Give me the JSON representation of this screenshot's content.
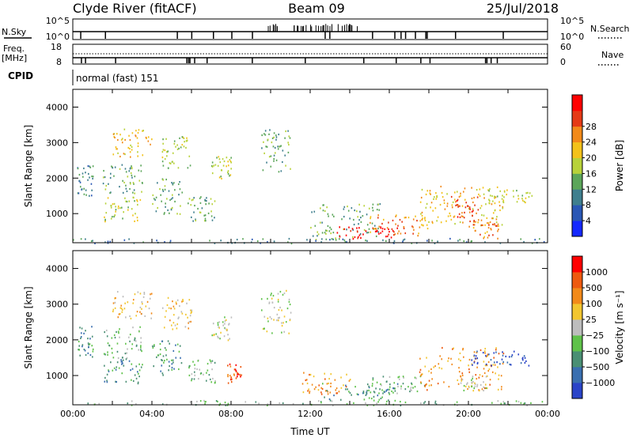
{
  "header": {
    "title": "Clyde River (fitACF)",
    "beam": "Beam 09",
    "date": "25/Jul/2018"
  },
  "sky_panel": {
    "left_label": "N.Sky",
    "right_label": "N.Search",
    "left_ticks": [
      "10^5",
      "10^0"
    ],
    "right_ticks": [
      "10^5",
      "10^0"
    ]
  },
  "freq_panel": {
    "left_label_top": "Freq.",
    "left_label_bottom": "[MHz]",
    "right_label": "Nave",
    "left_ticks": [
      "18",
      "8"
    ],
    "right_ticks": [
      "60",
      "0"
    ]
  },
  "cpid": {
    "label": "CPID",
    "value": "normal (fast) 151"
  },
  "chart_data": [
    {
      "type": "heatmap",
      "quantity": "Power",
      "ylabel": "Slant Range [km]",
      "ylim": [
        180,
        4500
      ],
      "yticks": [
        1000,
        2000,
        3000,
        4000
      ],
      "colorbar": {
        "label": "Power [dB]",
        "ticks": [
          "4",
          "8",
          "12",
          "16",
          "20",
          "24",
          "28"
        ],
        "colors": [
          "#1428ff",
          "#2a57b5",
          "#3f7f8e",
          "#5ca65a",
          "#b8d23a",
          "#f3c21a",
          "#f28a1a",
          "#e53a16",
          "#ff0000"
        ]
      },
      "blobs": [
        {
          "t": [
            0.2,
            1.0
          ],
          "r": [
            1500,
            2400
          ],
          "level": 2
        },
        {
          "t": [
            1.5,
            3.5
          ],
          "r": [
            1500,
            2400
          ],
          "level": 3
        },
        {
          "t": [
            1.5,
            3.5
          ],
          "r": [
            800,
            1500
          ],
          "level": 4
        },
        {
          "t": [
            2.0,
            4.0
          ],
          "r": [
            2600,
            3400
          ],
          "level": 5
        },
        {
          "t": [
            4.0,
            5.5
          ],
          "r": [
            1000,
            2000
          ],
          "level": 3
        },
        {
          "t": [
            4.5,
            6.0
          ],
          "r": [
            2300,
            3200
          ],
          "level": 4
        },
        {
          "t": [
            5.8,
            7.2
          ],
          "r": [
            800,
            1500
          ],
          "level": 3
        },
        {
          "t": [
            7.0,
            8.0
          ],
          "r": [
            2000,
            2700
          ],
          "level": 4
        },
        {
          "t": [
            9.5,
            11.0
          ],
          "r": [
            2200,
            3400
          ],
          "level": 3
        },
        {
          "t": [
            12.0,
            15.5
          ],
          "r": [
            280,
            1300
          ],
          "level": 3
        },
        {
          "t": [
            13.2,
            16.5
          ],
          "r": [
            300,
            650
          ],
          "level": 8
        },
        {
          "t": [
            15.0,
            17.8
          ],
          "r": [
            400,
            1000
          ],
          "level": 6
        },
        {
          "t": [
            17.5,
            21.8
          ],
          "r": [
            600,
            1800
          ],
          "level": 5
        },
        {
          "t": [
            19.0,
            20.5
          ],
          "r": [
            900,
            1500
          ],
          "level": 7
        },
        {
          "t": [
            20.0,
            21.5
          ],
          "r": [
            300,
            900
          ],
          "level": 6
        },
        {
          "t": [
            21.0,
            23.2
          ],
          "r": [
            1300,
            1700
          ],
          "level": 4
        },
        {
          "t": [
            0.0,
            24.0
          ],
          "r": [
            180,
            320
          ],
          "level": 2
        }
      ]
    },
    {
      "type": "heatmap",
      "quantity": "Velocity",
      "xlabel": "Time UT",
      "ylabel": "Slant Range [km]",
      "ylim": [
        180,
        4500
      ],
      "yticks": [
        1000,
        2000,
        3000,
        4000
      ],
      "xlim": [
        0,
        24
      ],
      "xticks": [
        "00:00",
        "04:00",
        "08:00",
        "12:00",
        "16:00",
        "20:00",
        "00:00"
      ],
      "colorbar": {
        "label": "Velocity [m s⁻¹]",
        "ticks": [
          "1000",
          "500",
          "100",
          "25",
          "−25",
          "−100",
          "−500",
          "−1000"
        ],
        "colors": [
          "#2a44c8",
          "#3a6fb0",
          "#4a8f74",
          "#5fc24a",
          "#bdbdbd",
          "#f2c630",
          "#f28a1a",
          "#ee5a10",
          "#ff0000"
        ]
      },
      "blobs": [
        {
          "t": [
            0.2,
            1.0
          ],
          "r": [
            1500,
            2400
          ],
          "level": 2
        },
        {
          "t": [
            1.5,
            3.5
          ],
          "r": [
            1500,
            2400
          ],
          "level": 3
        },
        {
          "t": [
            1.5,
            3.5
          ],
          "r": [
            800,
            1500
          ],
          "level": 2
        },
        {
          "t": [
            2.0,
            4.0
          ],
          "r": [
            2600,
            3400
          ],
          "level": 5
        },
        {
          "t": [
            4.0,
            5.5
          ],
          "r": [
            1000,
            2000
          ],
          "level": 2
        },
        {
          "t": [
            4.5,
            6.0
          ],
          "r": [
            2300,
            3200
          ],
          "level": 5
        },
        {
          "t": [
            5.8,
            7.2
          ],
          "r": [
            800,
            1500
          ],
          "level": 3
        },
        {
          "t": [
            7.0,
            8.0
          ],
          "r": [
            2000,
            2700
          ],
          "level": 4
        },
        {
          "t": [
            7.8,
            8.5
          ],
          "r": [
            800,
            1400
          ],
          "level": 7
        },
        {
          "t": [
            9.5,
            11.0
          ],
          "r": [
            2200,
            3400
          ],
          "level": 4
        },
        {
          "t": [
            11.5,
            14.0
          ],
          "r": [
            500,
            1100
          ],
          "level": 6
        },
        {
          "t": [
            12.5,
            16.5
          ],
          "r": [
            300,
            800
          ],
          "level": 2
        },
        {
          "t": [
            15.0,
            17.8
          ],
          "r": [
            500,
            1000
          ],
          "level": 3
        },
        {
          "t": [
            17.5,
            21.8
          ],
          "r": [
            600,
            1800
          ],
          "level": 6
        },
        {
          "t": [
            19.5,
            21.0
          ],
          "r": [
            600,
            1000
          ],
          "level": 4
        },
        {
          "t": [
            20.0,
            23.2
          ],
          "r": [
            1300,
            1700
          ],
          "level": 0
        },
        {
          "t": [
            0.0,
            24.0
          ],
          "r": [
            180,
            320
          ],
          "level": 3
        }
      ]
    }
  ]
}
